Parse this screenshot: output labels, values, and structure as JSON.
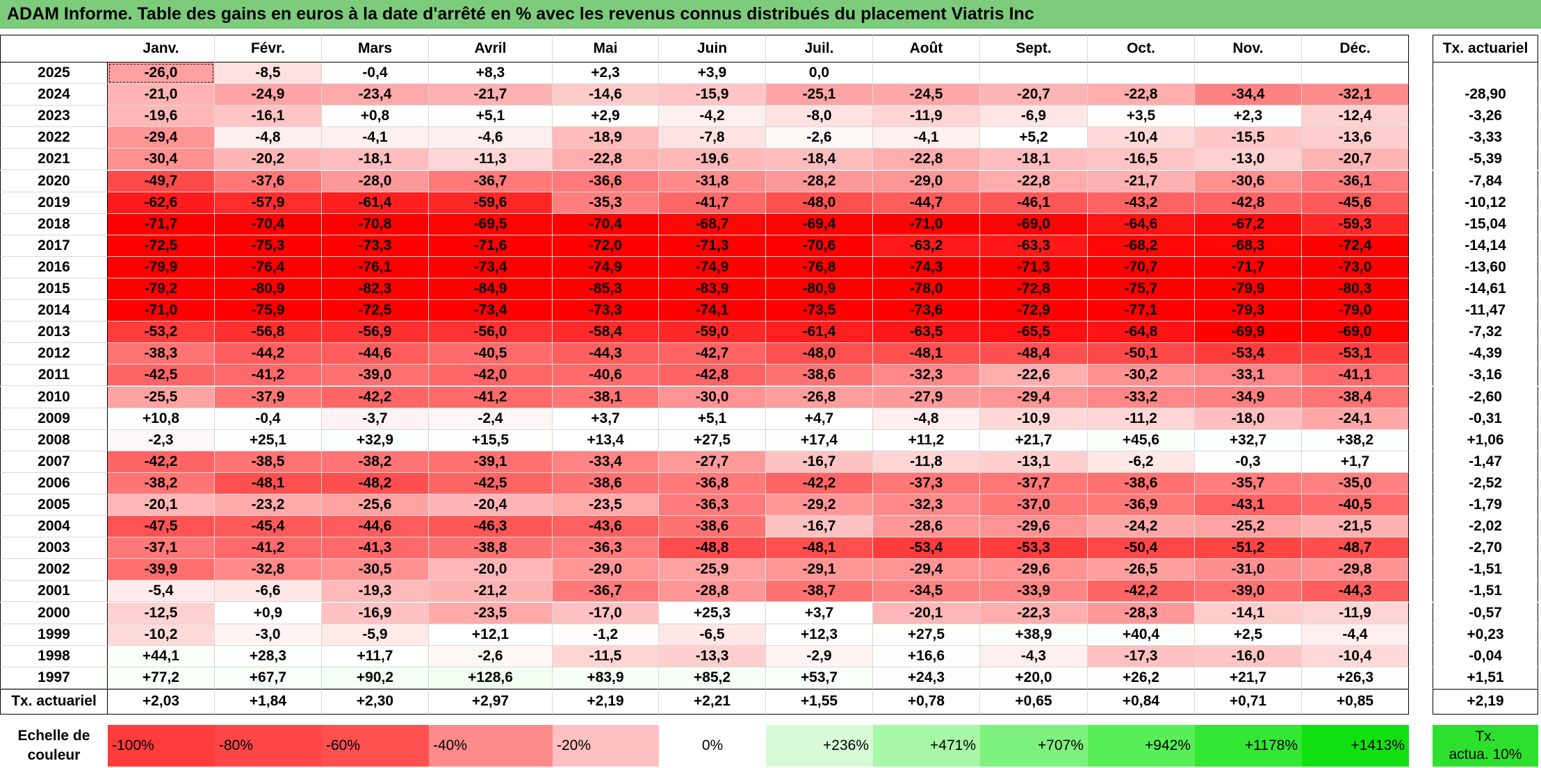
{
  "title": "ADAM Informe. Table des gains en euros à la date d'arrêté en % avec les revenus connus distribués du placement Viatris Inc",
  "months": [
    "Janv.",
    "Févr.",
    "Mars",
    "Avril",
    "Mai",
    "Juin",
    "Juil.",
    "Août",
    "Sept.",
    "Oct.",
    "Nov.",
    "Déc."
  ],
  "tx_header": "Tx. actuariel",
  "rows": [
    {
      "year": "2025",
      "values": [
        "-26,0",
        "-8,5",
        "-0,4",
        "+8,3",
        "+2,3",
        "+3,9",
        "0,0",
        "",
        "",
        "",
        "",
        ""
      ],
      "tx": ""
    },
    {
      "year": "2024",
      "values": [
        "-21,0",
        "-24,9",
        "-23,4",
        "-21,7",
        "-14,6",
        "-15,9",
        "-25,1",
        "-24,5",
        "-20,7",
        "-22,8",
        "-34,4",
        "-32,1"
      ],
      "tx": "-28,90"
    },
    {
      "year": "2023",
      "values": [
        "-19,6",
        "-16,1",
        "+0,8",
        "+5,1",
        "+2,9",
        "-4,2",
        "-8,0",
        "-11,9",
        "-6,9",
        "+3,5",
        "+2,3",
        "-12,4"
      ],
      "tx": "-3,26"
    },
    {
      "year": "2022",
      "values": [
        "-29,4",
        "-4,8",
        "-4,1",
        "-4,6",
        "-18,9",
        "-7,8",
        "-2,6",
        "-4,1",
        "+5,2",
        "-10,4",
        "-15,5",
        "-13,6"
      ],
      "tx": "-3,33"
    },
    {
      "year": "2021",
      "values": [
        "-30,4",
        "-20,2",
        "-18,1",
        "-11,3",
        "-22,8",
        "-19,6",
        "-18,4",
        "-22,8",
        "-18,1",
        "-16,5",
        "-13,0",
        "-20,7"
      ],
      "tx": "-5,39"
    },
    {
      "year": "2020",
      "values": [
        "-49,7",
        "-37,6",
        "-28,0",
        "-36,7",
        "-36,6",
        "-31,8",
        "-28,2",
        "-29,0",
        "-22,8",
        "-21,7",
        "-30,6",
        "-36,1"
      ],
      "tx": "-7,84"
    },
    {
      "year": "2019",
      "values": [
        "-62,6",
        "-57,9",
        "-61,4",
        "-59,6",
        "-35,3",
        "-41,7",
        "-48,0",
        "-44,7",
        "-46,1",
        "-43,2",
        "-42,8",
        "-45,6"
      ],
      "tx": "-10,12"
    },
    {
      "year": "2018",
      "values": [
        "-71,7",
        "-70,4",
        "-70,8",
        "-69,5",
        "-70,4",
        "-68,7",
        "-69,4",
        "-71,0",
        "-69,0",
        "-64,6",
        "-67,2",
        "-59,3"
      ],
      "tx": "-15,04"
    },
    {
      "year": "2017",
      "values": [
        "-72,5",
        "-75,3",
        "-73,3",
        "-71,6",
        "-72,0",
        "-71,3",
        "-70,6",
        "-63,2",
        "-63,3",
        "-68,2",
        "-68,3",
        "-72,4"
      ],
      "tx": "-14,14"
    },
    {
      "year": "2016",
      "values": [
        "-79,9",
        "-76,4",
        "-76,1",
        "-73,4",
        "-74,9",
        "-74,9",
        "-76,8",
        "-74,3",
        "-71,3",
        "-70,7",
        "-71,7",
        "-73,0"
      ],
      "tx": "-13,60"
    },
    {
      "year": "2015",
      "values": [
        "-79,2",
        "-80,9",
        "-82,3",
        "-84,9",
        "-85,3",
        "-83,9",
        "-80,9",
        "-78,0",
        "-72,8",
        "-75,7",
        "-79,9",
        "-80,3"
      ],
      "tx": "-14,61"
    },
    {
      "year": "2014",
      "values": [
        "-71,0",
        "-75,9",
        "-72,5",
        "-73,4",
        "-73,3",
        "-74,1",
        "-73,5",
        "-73,6",
        "-72,9",
        "-77,1",
        "-79,3",
        "-79,0"
      ],
      "tx": "-11,47"
    },
    {
      "year": "2013",
      "values": [
        "-53,2",
        "-56,8",
        "-56,9",
        "-56,0",
        "-58,4",
        "-59,0",
        "-61,4",
        "-63,5",
        "-65,5",
        "-64,8",
        "-69,9",
        "-69,0"
      ],
      "tx": "-7,32"
    },
    {
      "year": "2012",
      "values": [
        "-38,3",
        "-44,2",
        "-44,6",
        "-40,5",
        "-44,3",
        "-42,7",
        "-48,0",
        "-48,1",
        "-48,4",
        "-50,1",
        "-53,4",
        "-53,1"
      ],
      "tx": "-4,39"
    },
    {
      "year": "2011",
      "values": [
        "-42,5",
        "-41,2",
        "-39,0",
        "-42,0",
        "-40,6",
        "-42,8",
        "-38,6",
        "-32,3",
        "-22,6",
        "-30,2",
        "-33,1",
        "-41,1"
      ],
      "tx": "-3,16"
    },
    {
      "year": "2010",
      "values": [
        "-25,5",
        "-37,9",
        "-42,2",
        "-41,2",
        "-38,1",
        "-30,0",
        "-26,8",
        "-27,9",
        "-29,4",
        "-33,2",
        "-34,9",
        "-38,4"
      ],
      "tx": "-2,60"
    },
    {
      "year": "2009",
      "values": [
        "+10,8",
        "-0,4",
        "-3,7",
        "-2,4",
        "+3,7",
        "+5,1",
        "+4,7",
        "-4,8",
        "-10,9",
        "-11,2",
        "-18,0",
        "-24,1"
      ],
      "tx": "-0,31"
    },
    {
      "year": "2008",
      "values": [
        "-2,3",
        "+25,1",
        "+32,9",
        "+15,5",
        "+13,4",
        "+27,5",
        "+17,4",
        "+11,2",
        "+21,7",
        "+45,6",
        "+32,7",
        "+38,2"
      ],
      "tx": "+1,06"
    },
    {
      "year": "2007",
      "values": [
        "-42,2",
        "-38,5",
        "-38,2",
        "-39,1",
        "-33,4",
        "-27,7",
        "-16,7",
        "-11,8",
        "-13,1",
        "-6,2",
        "-0,3",
        "+1,7"
      ],
      "tx": "-1,47"
    },
    {
      "year": "2006",
      "values": [
        "-38,2",
        "-48,1",
        "-48,2",
        "-42,5",
        "-38,6",
        "-36,8",
        "-42,2",
        "-37,3",
        "-37,7",
        "-38,6",
        "-35,7",
        "-35,0"
      ],
      "tx": "-2,52"
    },
    {
      "year": "2005",
      "values": [
        "-20,1",
        "-23,2",
        "-25,6",
        "-20,4",
        "-23,5",
        "-36,3",
        "-29,2",
        "-32,3",
        "-37,0",
        "-36,9",
        "-43,1",
        "-40,5"
      ],
      "tx": "-1,79"
    },
    {
      "year": "2004",
      "values": [
        "-47,5",
        "-45,4",
        "-44,6",
        "-46,3",
        "-43,6",
        "-38,6",
        "-16,7",
        "-28,6",
        "-29,6",
        "-24,2",
        "-25,2",
        "-21,5"
      ],
      "tx": "-2,02"
    },
    {
      "year": "2003",
      "values": [
        "-37,1",
        "-41,2",
        "-41,3",
        "-38,8",
        "-36,3",
        "-48,8",
        "-48,1",
        "-53,4",
        "-53,3",
        "-50,4",
        "-51,2",
        "-48,7"
      ],
      "tx": "-2,70"
    },
    {
      "year": "2002",
      "values": [
        "-39,9",
        "-32,8",
        "-30,5",
        "-20,0",
        "-29,0",
        "-25,9",
        "-29,1",
        "-29,4",
        "-29,6",
        "-26,5",
        "-31,0",
        "-29,8"
      ],
      "tx": "-1,51"
    },
    {
      "year": "2001",
      "values": [
        "-5,4",
        "-6,6",
        "-19,3",
        "-21,2",
        "-36,7",
        "-28,8",
        "-38,7",
        "-34,5",
        "-33,9",
        "-42,2",
        "-39,0",
        "-44,3"
      ],
      "tx": "-1,51"
    },
    {
      "year": "2000",
      "values": [
        "-12,5",
        "+0,9",
        "-16,9",
        "-23,5",
        "-17,0",
        "+25,3",
        "+3,7",
        "-20,1",
        "-22,3",
        "-28,3",
        "-14,1",
        "-11,9"
      ],
      "tx": "-0,57"
    },
    {
      "year": "1999",
      "values": [
        "-10,2",
        "-3,0",
        "-5,9",
        "+12,1",
        "-1,2",
        "-6,5",
        "+12,3",
        "+27,5",
        "+38,9",
        "+40,4",
        "+2,5",
        "-4,4"
      ],
      "tx": "+0,23"
    },
    {
      "year": "1998",
      "values": [
        "+44,1",
        "+28,3",
        "+11,7",
        "-2,6",
        "-11,5",
        "-13,3",
        "-2,9",
        "+16,6",
        "-4,3",
        "-17,3",
        "-16,0",
        "-10,4"
      ],
      "tx": "-0,04"
    },
    {
      "year": "1997",
      "values": [
        "+77,2",
        "+67,7",
        "+90,2",
        "+128,6",
        "+83,9",
        "+85,2",
        "+53,7",
        "+24,3",
        "+20,0",
        "+26,2",
        "+21,7",
        "+26,3"
      ],
      "tx": "+1,51"
    }
  ],
  "totals": {
    "label": "Tx. actuariel",
    "values": [
      "+2,03",
      "+1,84",
      "+2,30",
      "+2,97",
      "+2,19",
      "+2,21",
      "+1,55",
      "+0,78",
      "+0,65",
      "+0,84",
      "+0,71",
      "+0,85"
    ],
    "overall": "+2,19"
  },
  "scale": {
    "label_line1": "Echelle de",
    "label_line2": "couleur",
    "items": [
      {
        "text": "-100%",
        "color": "#ff3c3c",
        "align": "left"
      },
      {
        "text": "-80%",
        "color": "#ff4646",
        "align": "left"
      },
      {
        "text": "-60%",
        "color": "#ff5050",
        "align": "left"
      },
      {
        "text": "-40%",
        "color": "#ff8a8a",
        "align": "left"
      },
      {
        "text": "-20%",
        "color": "#ffc0c0",
        "align": "left"
      },
      {
        "text": "0%",
        "color": "#ffffff",
        "align": "center"
      },
      {
        "text": "+236%",
        "color": "#d7fbd7",
        "align": "right"
      },
      {
        "text": "+471%",
        "color": "#a6f7a6",
        "align": "right"
      },
      {
        "text": "+707%",
        "color": "#7ef27e",
        "align": "right"
      },
      {
        "text": "+942%",
        "color": "#58ee58",
        "align": "right"
      },
      {
        "text": "+1178%",
        "color": "#33e733",
        "align": "right"
      },
      {
        "text": "+1413%",
        "color": "#11e111",
        "align": "right"
      }
    ],
    "tx_line1": "Tx.",
    "tx_line2": "actua. 10%",
    "tx_color": "#2ee02e"
  }
}
